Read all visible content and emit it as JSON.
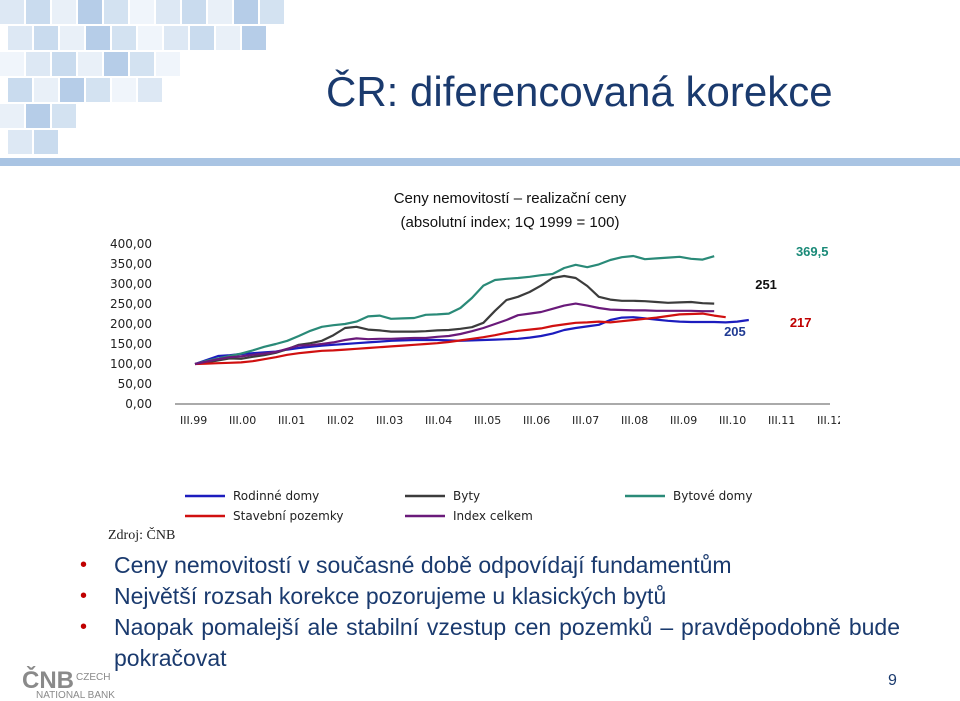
{
  "slide": {
    "title": "ČR: diferencovaná korekce",
    "page_number": "9",
    "source": "Zdroj: ČNB",
    "bullets": [
      "Ceny nemovitostí v současné době odpovídají fundamentům",
      "Největší rozsah korekce pozorujeme u klasických bytů",
      "Naopak pomalejší ale stabilní vzestup cen pozemků – pravděpodobně bude pokračovat"
    ],
    "logo": {
      "main": "ČNB",
      "line1": "CZECH",
      "line2": "NATIONAL BANK"
    }
  },
  "chart_data": {
    "type": "line",
    "title": "Ceny nemovitostí – realizační ceny",
    "subtitle": "(absolutní index; 1Q 1999 = 100)",
    "x_tick_labels": [
      "III.99",
      "III.00",
      "III.01",
      "III.02",
      "III.03",
      "III.04",
      "III.05",
      "III.06",
      "III.07",
      "III.08",
      "III.09",
      "III.10",
      "III.11",
      "III.12"
    ],
    "y_tick_labels": [
      "0,00",
      "50,00",
      "100,00",
      "150,00",
      "200,00",
      "250,00",
      "300,00",
      "350,00",
      "400,00"
    ],
    "ylim": [
      0,
      400
    ],
    "grid": false,
    "legend_position": "bottom",
    "annotations": [
      {
        "text": "369,5",
        "color": "#1a8a78",
        "x": 53.5,
        "y": 370
      },
      {
        "text": "251",
        "color": "#111111",
        "x": 49.5,
        "y": 288
      },
      {
        "text": "217",
        "color": "#c00000",
        "x": 52.5,
        "y": 193
      },
      {
        "text": "205",
        "color": "#1f3a93",
        "x": 46.8,
        "y": 170
      }
    ],
    "series": [
      {
        "name": "Rodinné domy",
        "color": "#1c1cbe",
        "values": [
          100,
          110,
          120,
          122,
          125,
          127,
          129,
          131,
          136,
          140,
          143,
          146,
          148,
          150,
          152,
          154,
          156,
          158,
          159,
          160,
          160,
          160,
          159,
          158,
          159,
          160,
          161,
          162,
          163,
          166,
          170,
          176,
          185,
          190,
          194,
          198,
          210,
          216,
          217,
          214,
          211,
          208,
          206,
          205,
          205,
          205,
          204,
          206,
          210
        ]
      },
      {
        "name": "Byty",
        "color": "#3c3c3c",
        "values": [
          100,
          104,
          109,
          114,
          113,
          118,
          122,
          128,
          137,
          148,
          152,
          158,
          172,
          190,
          193,
          186,
          184,
          181,
          181,
          181,
          182,
          184,
          185,
          188,
          192,
          203,
          233,
          260,
          268,
          280,
          296,
          315,
          320,
          315,
          295,
          268,
          261,
          258,
          258,
          257,
          255,
          253,
          254,
          255,
          252,
          251
        ]
      },
      {
        "name": "Bytové domy",
        "color": "#2a8a78",
        "values": [
          100,
          108,
          114,
          120,
          126,
          134,
          143,
          150,
          158,
          170,
          183,
          193,
          197,
          200,
          206,
          219,
          221,
          213,
          214,
          215,
          223,
          224,
          226,
          240,
          265,
          296,
          310,
          313,
          315,
          318,
          322,
          325,
          340,
          348,
          342,
          349,
          360,
          367,
          370,
          362,
          364,
          366,
          368,
          363,
          361,
          369.5
        ]
      },
      {
        "name": "Stavební pozemky",
        "color": "#d01010",
        "values": [
          100,
          101,
          102,
          103,
          104,
          107,
          112,
          117,
          123,
          127,
          130,
          133,
          134,
          136,
          138,
          140,
          142,
          144,
          146,
          148,
          150,
          152,
          155,
          159,
          163,
          167,
          172,
          178,
          183,
          186,
          189,
          195,
          199,
          203,
          204,
          206,
          204,
          207,
          210,
          213,
          216,
          220,
          224,
          225,
          226,
          221,
          217
        ]
      },
      {
        "name": "Index celkem",
        "color": "#6a1a7a",
        "values": [
          100,
          106,
          112,
          117,
          119,
          123,
          126,
          130,
          138,
          146,
          147,
          150,
          154,
          160,
          164,
          162,
          163,
          163,
          164,
          165,
          165,
          168,
          170,
          175,
          182,
          190,
          200,
          210,
          222,
          226,
          230,
          238,
          246,
          251,
          246,
          240,
          236,
          235,
          234,
          234,
          233,
          233,
          233,
          233,
          232,
          232
        ]
      }
    ]
  }
}
